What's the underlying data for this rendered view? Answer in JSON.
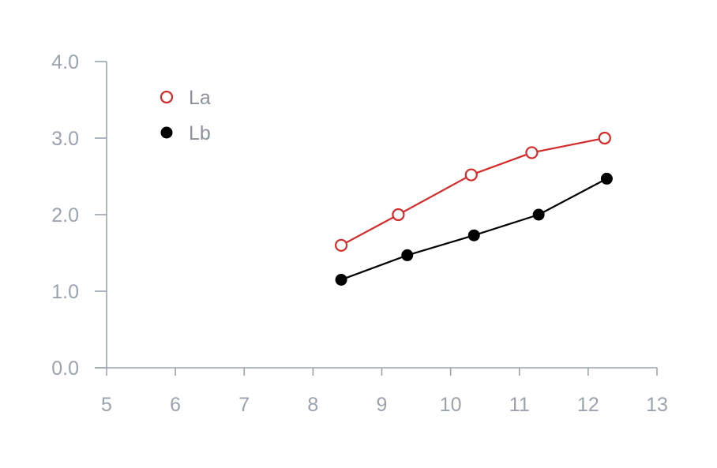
{
  "chart_data": {
    "type": "line",
    "title": "",
    "xlabel": "",
    "ylabel": "",
    "xlim": [
      5,
      13
    ],
    "ylim": [
      0,
      4
    ],
    "x_ticks": [
      5,
      6,
      7,
      8,
      9,
      10,
      11,
      12,
      13
    ],
    "y_ticks": [
      0,
      1,
      2,
      3,
      4
    ],
    "x_tick_labels": [
      "5",
      "6",
      "7",
      "8",
      "9",
      "10",
      "11",
      "12",
      "13"
    ],
    "y_tick_labels": [
      "0.0",
      "1.0",
      "2.0",
      "3.0",
      "4.0"
    ],
    "grid": false,
    "legend_position": "top-left",
    "series": [
      {
        "name": "La",
        "color": "#d42a2a",
        "marker": "open-circle",
        "x": [
          8.41,
          9.24,
          10.3,
          11.18,
          12.24
        ],
        "y": [
          1.6,
          2.0,
          2.52,
          2.81,
          3.0
        ]
      },
      {
        "name": "Lb",
        "color": "#000000",
        "marker": "filled-circle",
        "x": [
          8.41,
          9.37,
          10.34,
          11.28,
          12.27
        ],
        "y": [
          1.15,
          1.47,
          1.73,
          2.0,
          2.47
        ]
      }
    ]
  }
}
